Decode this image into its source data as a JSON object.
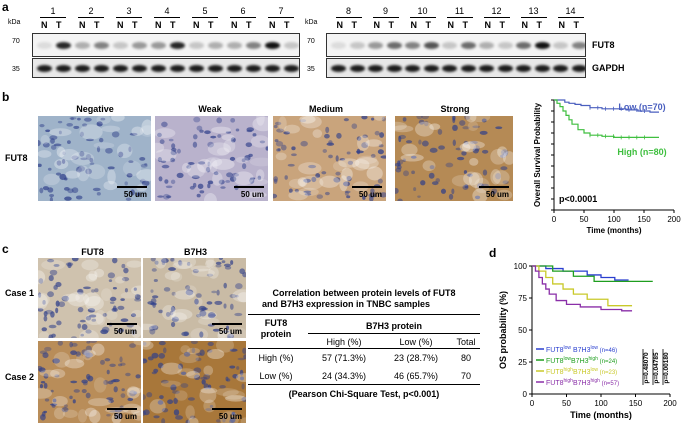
{
  "panels": {
    "a": "a",
    "b": "b",
    "c": "c",
    "d": "d"
  },
  "blot": {
    "kda": "kDa",
    "mw_70": "70",
    "mw_35": "35",
    "left_lanes": [
      "1",
      "2",
      "3",
      "4",
      "5",
      "6",
      "7"
    ],
    "right_lanes": [
      "8",
      "9",
      "10",
      "11",
      "12",
      "13",
      "14"
    ],
    "n_label": "N",
    "t_label": "T",
    "protein_top": "FUT8",
    "protein_bottom": "GAPDH"
  },
  "ihc_b": {
    "titles": [
      "Negative",
      "Weak",
      "Medium",
      "Strong"
    ],
    "row_label": "FUT8",
    "scale": "50 um",
    "colors": [
      "#9fb3c9",
      "#b9b2cc",
      "#c9a47c",
      "#b58a55"
    ]
  },
  "ihc_c": {
    "col_titles": [
      "FUT8",
      "B7H3"
    ],
    "row_labels": [
      "Case 1",
      "Case 2"
    ],
    "scale": "50 um",
    "colors": [
      "#cfc2ae",
      "#c9bba5",
      "#b98d59",
      "#a8773a"
    ]
  },
  "table": {
    "title_line1": "Correlation between protein  levels of FUT8",
    "title_line2": "and B7H3 expression in  TNBC samples",
    "row_header_line1": "FUT8",
    "row_header_line2": "protein",
    "group_header": "B7H3 protein",
    "col_headers": [
      "High (%)",
      "Low (%)",
      "Total"
    ],
    "rows": [
      {
        "label": "High (%)",
        "cells": [
          "57 (71.3%)",
          "23 (28.7%)",
          "80"
        ]
      },
      {
        "label": "Low (%)",
        "cells": [
          "24 (34.3%)",
          "46 (65.7%)",
          "70"
        ]
      }
    ],
    "footnote": "(Pearson Chi-Square Test, p<0.001)"
  },
  "chart_data": [
    {
      "type": "line",
      "panel": "b",
      "ylabel": "Overall Survival  Probability",
      "xlabel": "Time (months)",
      "xlim": [
        0,
        200
      ],
      "ylim": [
        0,
        1.0
      ],
      "xticks": [
        "0",
        "50",
        "100",
        "150",
        "200"
      ],
      "yticks": [
        "0.0",
        "0.1",
        "0.2",
        "0.3",
        "0.4",
        "0.5",
        "0.6",
        "0.7",
        "0.8",
        "0.9",
        "1.0"
      ],
      "annotation": "p<0.0001",
      "series": [
        {
          "name": "Low (n=70)",
          "color": "#4a5fbf",
          "x": [
            0,
            10,
            18,
            25,
            35,
            45,
            60,
            80,
            100,
            120,
            140,
            160,
            175
          ],
          "y": [
            1.0,
            1.0,
            0.98,
            0.97,
            0.96,
            0.95,
            0.93,
            0.92,
            0.92,
            0.91,
            0.9,
            0.89,
            0.89
          ]
        },
        {
          "name": "High (n=80)",
          "color": "#3fbf3f",
          "x": [
            0,
            5,
            10,
            15,
            20,
            25,
            30,
            40,
            50,
            60,
            80,
            100,
            120,
            140,
            160,
            175
          ],
          "y": [
            1.0,
            0.97,
            0.94,
            0.9,
            0.86,
            0.82,
            0.78,
            0.73,
            0.7,
            0.68,
            0.67,
            0.66,
            0.66,
            0.66,
            0.66,
            0.66
          ]
        }
      ]
    },
    {
      "type": "line",
      "panel": "d",
      "ylabel": "OS  probability (%)",
      "xlabel": "Time (months)",
      "xlim": [
        0,
        200
      ],
      "ylim": [
        0,
        100
      ],
      "xticks": [
        "0",
        "50",
        "100",
        "150",
        "200"
      ],
      "yticks": [
        "0",
        "25",
        "50",
        "75",
        "100"
      ],
      "pvalues": [
        "p=0.48070",
        "p=0.04785",
        "p=0.00180"
      ],
      "series": [
        {
          "name_parts": [
            "FUT8",
            "low",
            " B7H3",
            "low",
            " (n=46)"
          ],
          "color": "#2a3fcf",
          "x": [
            0,
            10,
            20,
            30,
            45,
            60,
            80,
            100,
            120,
            140
          ],
          "y": [
            100,
            100,
            98,
            98,
            96,
            96,
            93,
            91,
            89,
            89
          ]
        },
        {
          "name_parts": [
            "FUT8",
            "low",
            "B7H3",
            "high",
            " (n=24)"
          ],
          "color": "#1e9e1e",
          "x": [
            0,
            15,
            30,
            60,
            90,
            120,
            150,
            175
          ],
          "y": [
            100,
            100,
            96,
            92,
            88,
            88,
            88,
            88
          ]
        },
        {
          "name_parts": [
            "FUT8",
            "high",
            "B7H3",
            "low",
            " (n=23)"
          ],
          "color": "#c9c92a",
          "x": [
            0,
            10,
            20,
            30,
            45,
            60,
            80,
            110,
            145
          ],
          "y": [
            100,
            96,
            91,
            86,
            82,
            78,
            74,
            69,
            69
          ]
        },
        {
          "name_parts": [
            "FUT8",
            "high",
            "B7H3",
            "high",
            " (n=57)"
          ],
          "color": "#8a2fa8",
          "x": [
            0,
            5,
            10,
            15,
            20,
            25,
            35,
            50,
            70,
            100,
            130,
            145
          ],
          "y": [
            100,
            96,
            91,
            86,
            82,
            78,
            73,
            70,
            68,
            66,
            65,
            65
          ]
        }
      ]
    }
  ]
}
